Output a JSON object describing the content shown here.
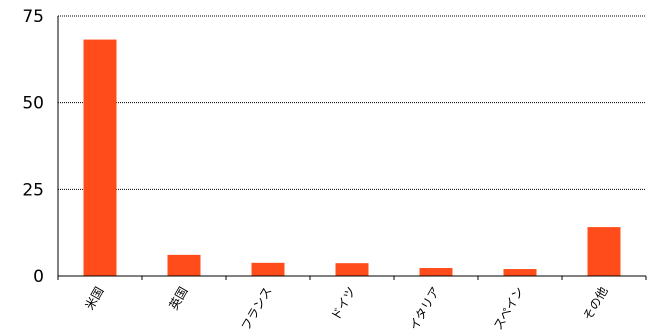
{
  "chart_data": {
    "type": "bar",
    "categories": [
      "米国",
      "英国",
      "フランス",
      "ドイツ",
      "イタリア",
      "スペイン",
      "その他"
    ],
    "values": [
      68.2,
      6.1,
      3.8,
      3.7,
      2.3,
      2.0,
      14.1
    ],
    "yticks": [
      0,
      25,
      50,
      75
    ],
    "ylim": [
      0,
      75
    ],
    "title": "",
    "xlabel": "",
    "ylabel": "",
    "grid": true,
    "legend": "none",
    "bar_color": "#ff4c1a",
    "grid_color": "#000000"
  }
}
